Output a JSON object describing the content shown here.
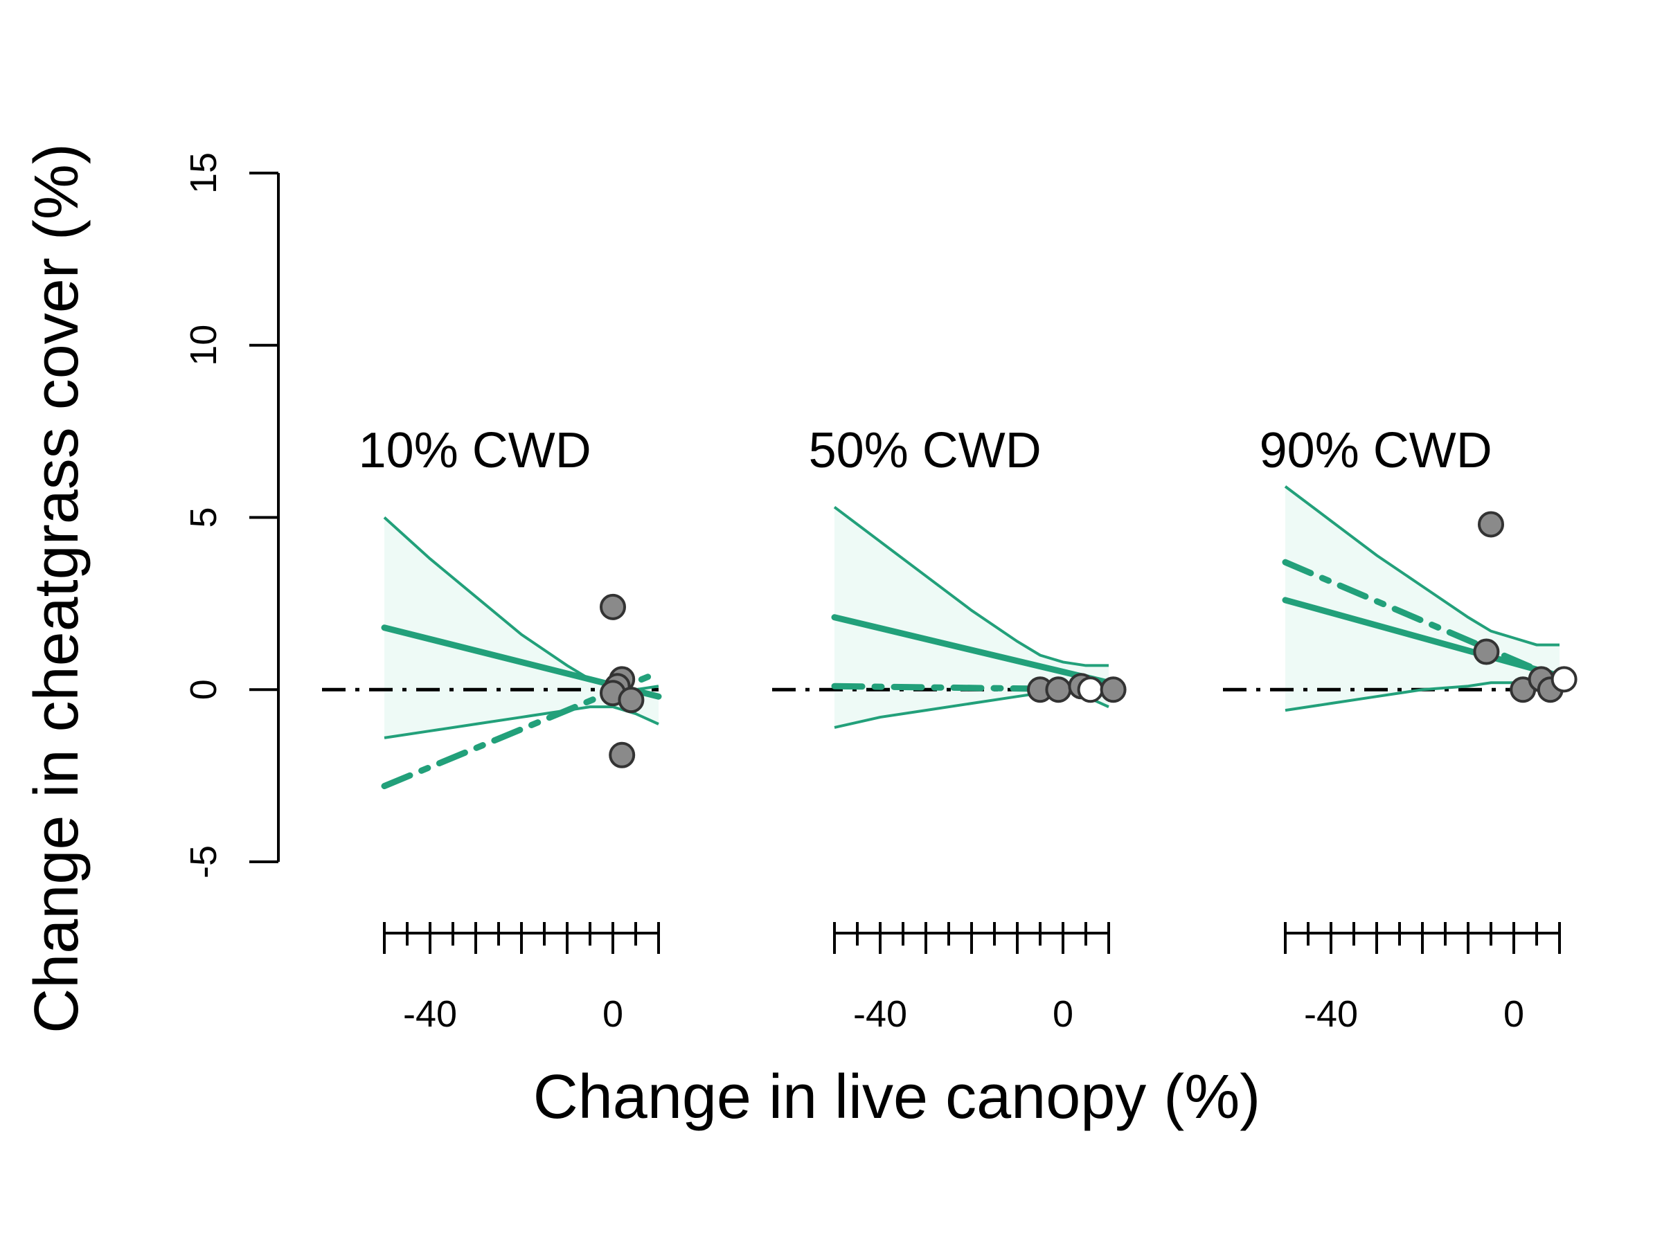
{
  "colors": {
    "accent": "#22a07a",
    "band": "#eefaf6",
    "point_fill": "#8a8a8a",
    "point_open": "#ffffff",
    "point_stroke": "#333333",
    "axis": "#000000"
  },
  "chart_data": {
    "type": "line",
    "title": "",
    "xlabel": "Change in live canopy (%)",
    "ylabel": "Change in cheatgrass cover (%)",
    "ylim": [
      -5,
      15
    ],
    "yticks": [
      "-5",
      "0",
      "5",
      "10",
      "15"
    ],
    "xlim": [
      -50,
      10
    ],
    "xticks_labeled": [
      "-40",
      "0"
    ],
    "reference_line_y": 0,
    "grid": false,
    "panels": [
      {
        "label": "10% CWD",
        "fit_x": [
          -50,
          10
        ],
        "fit_y": [
          1.8,
          -0.2
        ],
        "alt_x": [
          -50,
          10
        ],
        "alt_y": [
          -2.8,
          0.5
        ],
        "ci_x": [
          -50,
          -40,
          -30,
          -20,
          -10,
          -5,
          0,
          5,
          10
        ],
        "ci_upper": [
          5.0,
          3.8,
          2.7,
          1.6,
          0.7,
          0.3,
          0.1,
          0.0,
          0.1
        ],
        "ci_lower": [
          -1.4,
          -1.2,
          -1.0,
          -0.8,
          -0.6,
          -0.5,
          -0.5,
          -0.7,
          -1.0
        ],
        "points": [
          {
            "x": 0,
            "y": 2.4,
            "open": false
          },
          {
            "x": 2,
            "y": 0.3,
            "open": false
          },
          {
            "x": 1,
            "y": 0.1,
            "open": false
          },
          {
            "x": 0,
            "y": -0.1,
            "open": false
          },
          {
            "x": 4,
            "y": -0.3,
            "open": false
          },
          {
            "x": 2,
            "y": -1.9,
            "open": false
          }
        ]
      },
      {
        "label": "50% CWD",
        "fit_x": [
          -50,
          10
        ],
        "fit_y": [
          2.1,
          0.2
        ],
        "alt_x": [
          -50,
          10
        ],
        "alt_y": [
          0.1,
          0.0
        ],
        "ci_x": [
          -50,
          -40,
          -30,
          -20,
          -10,
          -5,
          0,
          5,
          10
        ],
        "ci_upper": [
          5.3,
          4.3,
          3.3,
          2.3,
          1.4,
          1.0,
          0.8,
          0.7,
          0.7
        ],
        "ci_lower": [
          -1.1,
          -0.8,
          -0.6,
          -0.4,
          -0.2,
          -0.1,
          0.0,
          -0.2,
          -0.5
        ],
        "points": [
          {
            "x": -5,
            "y": 0.0,
            "open": false
          },
          {
            "x": -1,
            "y": 0.0,
            "open": false
          },
          {
            "x": 4,
            "y": 0.1,
            "open": false
          },
          {
            "x": 6,
            "y": 0.0,
            "open": true
          },
          {
            "x": 11,
            "y": 0.0,
            "open": false
          }
        ]
      },
      {
        "label": "90% CWD",
        "fit_x": [
          -50,
          10
        ],
        "fit_y": [
          2.6,
          0.4
        ],
        "alt_x": [
          -50,
          10
        ],
        "alt_y": [
          3.7,
          0.3
        ],
        "ci_x": [
          -50,
          -40,
          -30,
          -20,
          -10,
          -5,
          0,
          5,
          10
        ],
        "ci_upper": [
          5.9,
          4.9,
          3.9,
          3.0,
          2.1,
          1.7,
          1.5,
          1.3,
          1.3
        ],
        "ci_lower": [
          -0.6,
          -0.4,
          -0.2,
          0.0,
          0.1,
          0.2,
          0.2,
          0.1,
          -0.2
        ],
        "points": [
          {
            "x": -5,
            "y": 4.8,
            "open": false
          },
          {
            "x": -6,
            "y": 1.1,
            "open": false
          },
          {
            "x": 2,
            "y": 0.0,
            "open": false
          },
          {
            "x": 6,
            "y": 0.3,
            "open": false
          },
          {
            "x": 8,
            "y": 0.0,
            "open": false
          },
          {
            "x": 11,
            "y": 0.3,
            "open": true
          }
        ]
      }
    ]
  }
}
